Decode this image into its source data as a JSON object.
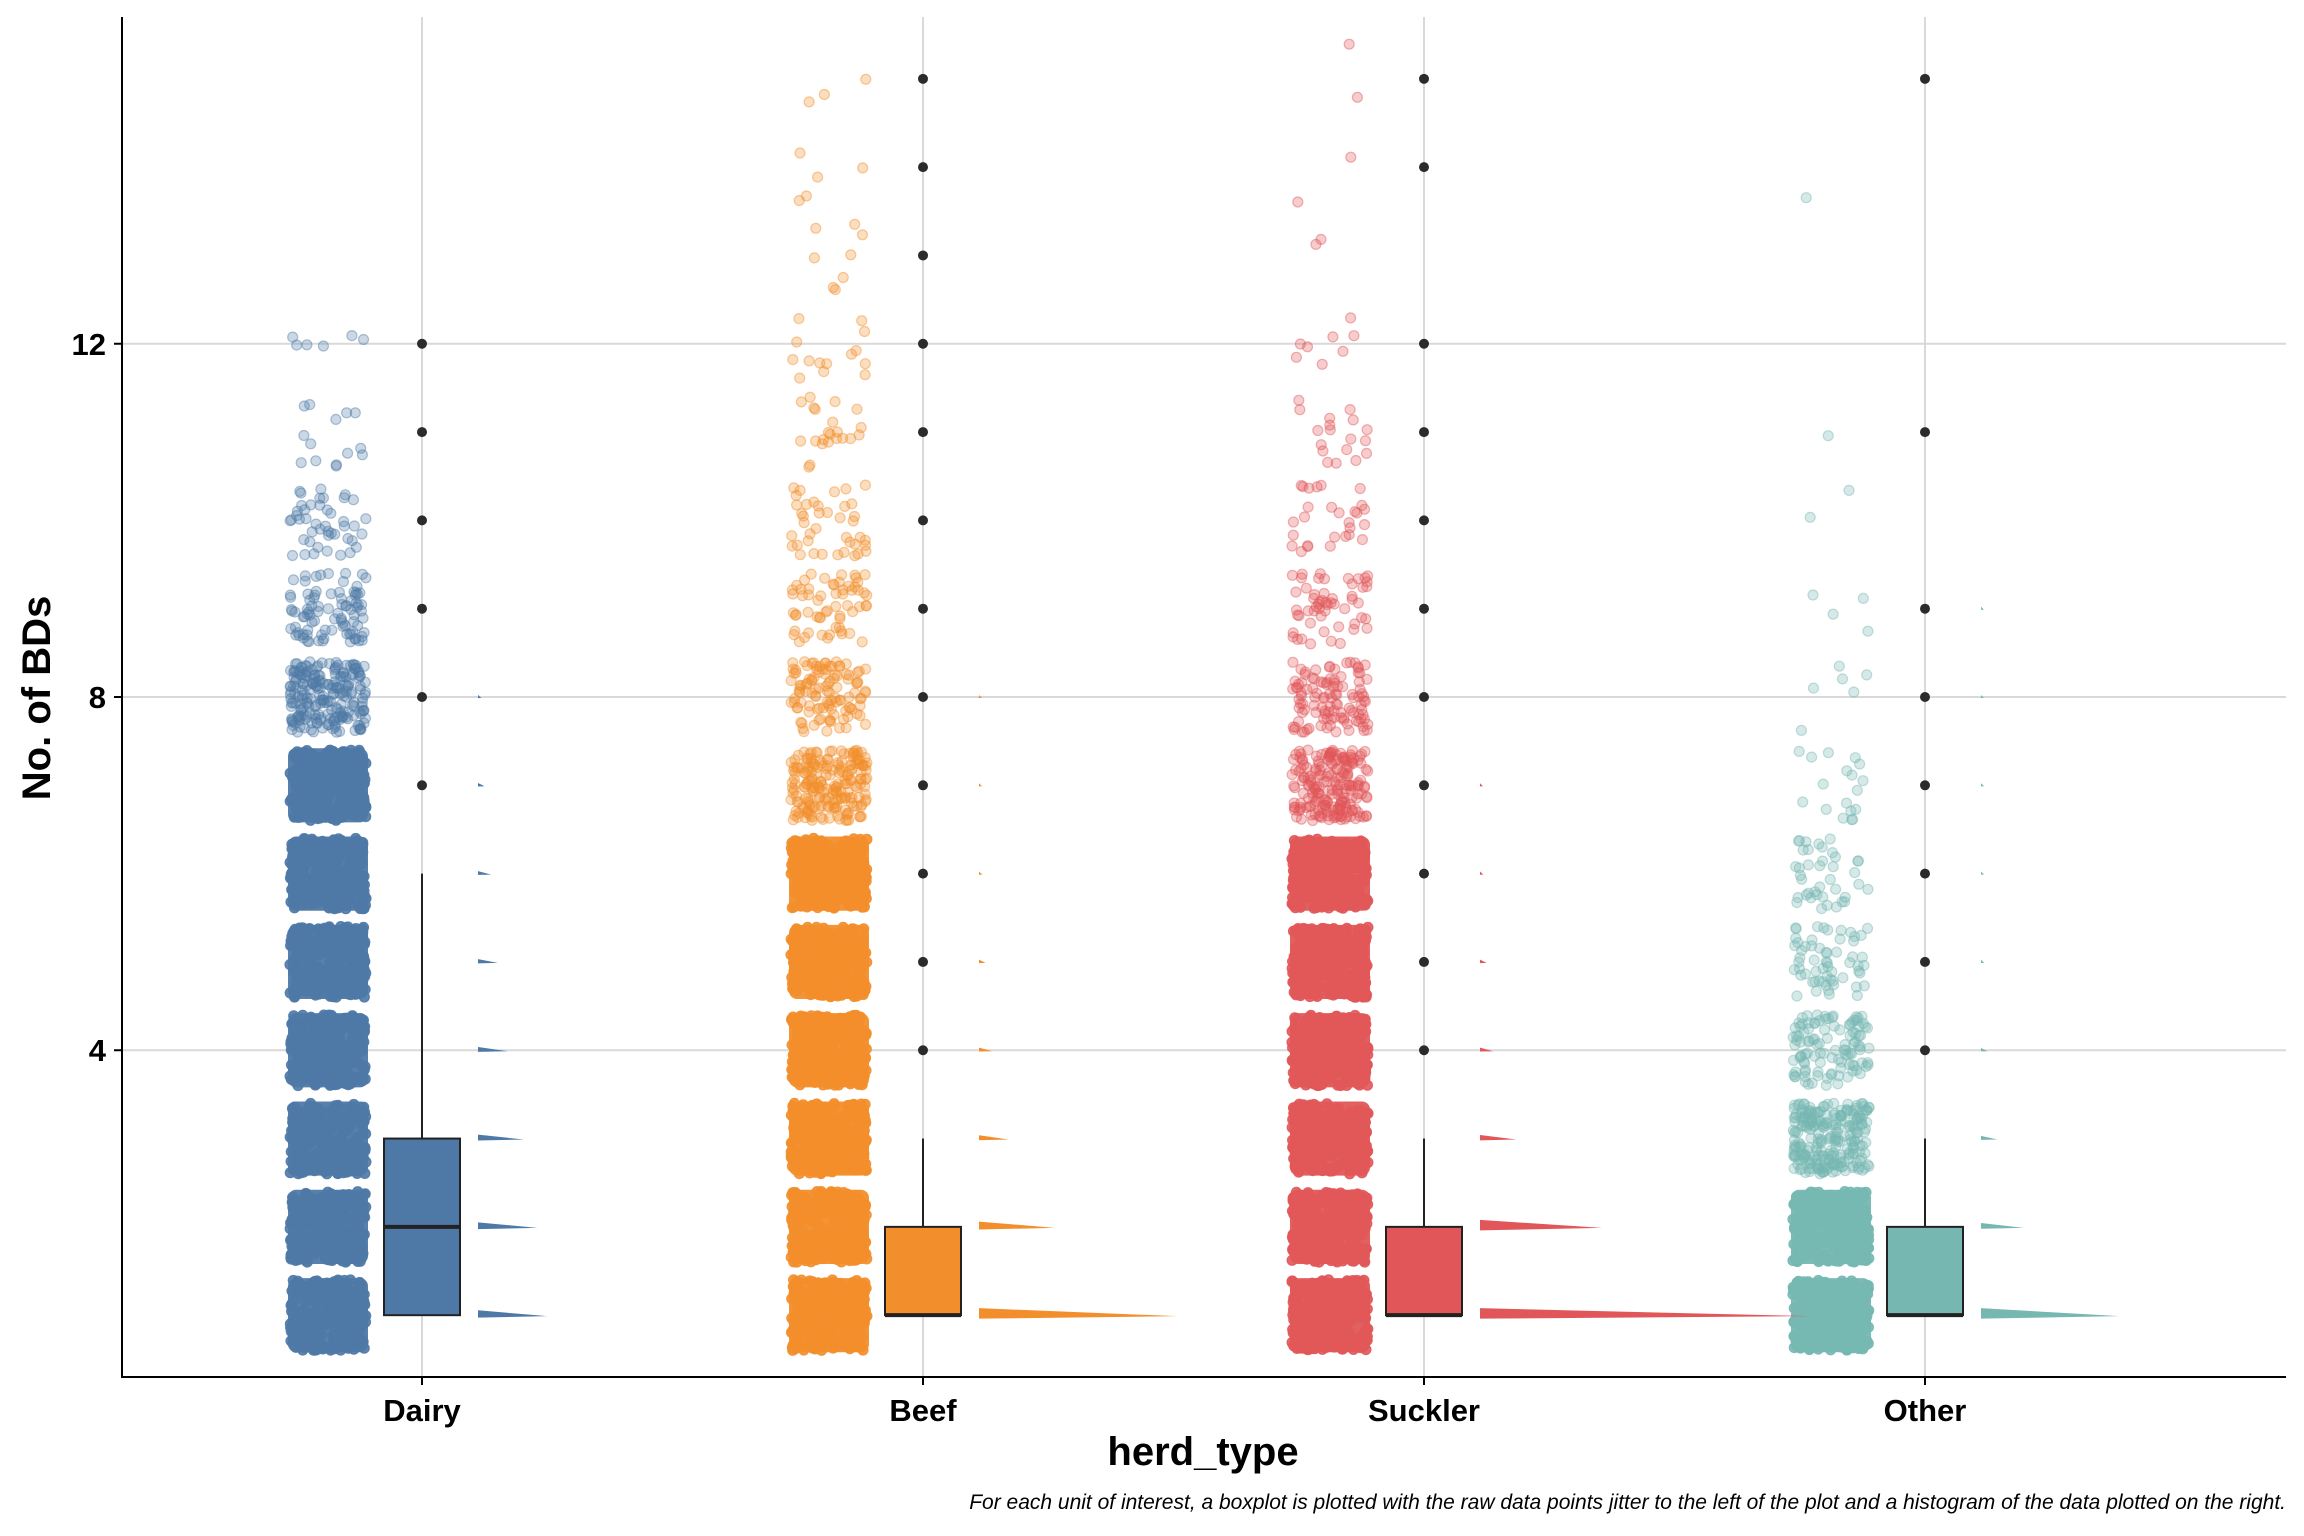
{
  "chart_data": {
    "type": "raincloud",
    "xlabel": "herd_type",
    "ylabel": "No. of BDs",
    "caption": "For each unit of interest, a boxplot is plotted with the raw data points jitter to the left of the plot and a histogram of the data plotted on the right.",
    "categories": [
      "Dairy",
      "Beef",
      "Suckler",
      "Other"
    ],
    "ylim": [
      0.3,
      15.7
    ],
    "y_ticks": [
      4,
      8,
      12
    ],
    "grid": true,
    "colors": {
      "Dairy": "#4E79A7",
      "Beef": "#F28E2B",
      "Suckler": "#E15759",
      "Other": "#76B7B2"
    },
    "box_stats": [
      {
        "name": "Dairy",
        "q1": 1,
        "median": 2,
        "q3": 3,
        "whisker_low": 1,
        "whisker_high": 6,
        "outliers": [
          7,
          8,
          9,
          10,
          11,
          12
        ]
      },
      {
        "name": "Beef",
        "q1": 1,
        "median": 1,
        "q3": 2,
        "whisker_low": 1,
        "whisker_high": 3,
        "outliers": [
          4,
          5,
          6,
          7,
          8,
          9,
          10,
          11,
          12,
          13,
          14,
          15
        ]
      },
      {
        "name": "Suckler",
        "q1": 1,
        "median": 1,
        "q3": 2,
        "whisker_low": 1,
        "whisker_high": 3,
        "outliers": [
          4,
          5,
          6,
          7,
          8,
          9,
          10,
          11,
          12,
          14,
          15
        ]
      },
      {
        "name": "Other",
        "q1": 1,
        "median": 1,
        "q3": 2,
        "whisker_low": 1,
        "whisker_high": 3,
        "outliers": [
          4,
          5,
          6,
          7,
          8,
          9,
          11,
          15
        ]
      }
    ],
    "histograms": [
      {
        "name": "Dairy",
        "values": [
          1,
          2,
          3,
          4,
          5,
          6,
          7,
          8
        ],
        "relative_heights": [
          0.21,
          0.18,
          0.14,
          0.09,
          0.06,
          0.04,
          0.02,
          0.01
        ]
      },
      {
        "name": "Beef",
        "values": [
          1,
          2,
          3,
          4,
          5,
          6,
          7,
          8
        ],
        "relative_heights": [
          0.6,
          0.23,
          0.09,
          0.04,
          0.02,
          0.01,
          0.005,
          0.003
        ]
      },
      {
        "name": "Suckler",
        "values": [
          1,
          2,
          3,
          4,
          5,
          6,
          7
        ],
        "relative_heights": [
          1.0,
          0.37,
          0.11,
          0.04,
          0.02,
          0.01,
          0.005
        ]
      },
      {
        "name": "Other",
        "values": [
          1,
          2,
          3,
          4,
          5,
          6,
          7,
          8,
          9
        ],
        "relative_heights": [
          0.42,
          0.13,
          0.05,
          0.02,
          0.01,
          0.005,
          0.004,
          0.003,
          0.002
        ]
      }
    ],
    "jitter_approx_counts": [
      {
        "name": "Dairy",
        "counts": [
          1500,
          1400,
          1200,
          900,
          700,
          600,
          350,
          220,
          90,
          45,
          14,
          6
        ]
      },
      {
        "name": "Beef",
        "counts": [
          1800,
          1300,
          800,
          500,
          420,
          320,
          200,
          110,
          60,
          40,
          22,
          14,
          8,
          5,
          3
        ]
      },
      {
        "name": "Suckler",
        "counts": [
          2200,
          1400,
          900,
          550,
          400,
          320,
          200,
          110,
          55,
          28,
          18,
          8,
          2,
          2,
          2
        ]
      },
      {
        "name": "Other",
        "counts": [
          1100,
          520,
          240,
          110,
          60,
          40,
          18,
          6,
          4,
          2,
          1,
          0,
          0,
          1,
          0
        ]
      }
    ]
  }
}
